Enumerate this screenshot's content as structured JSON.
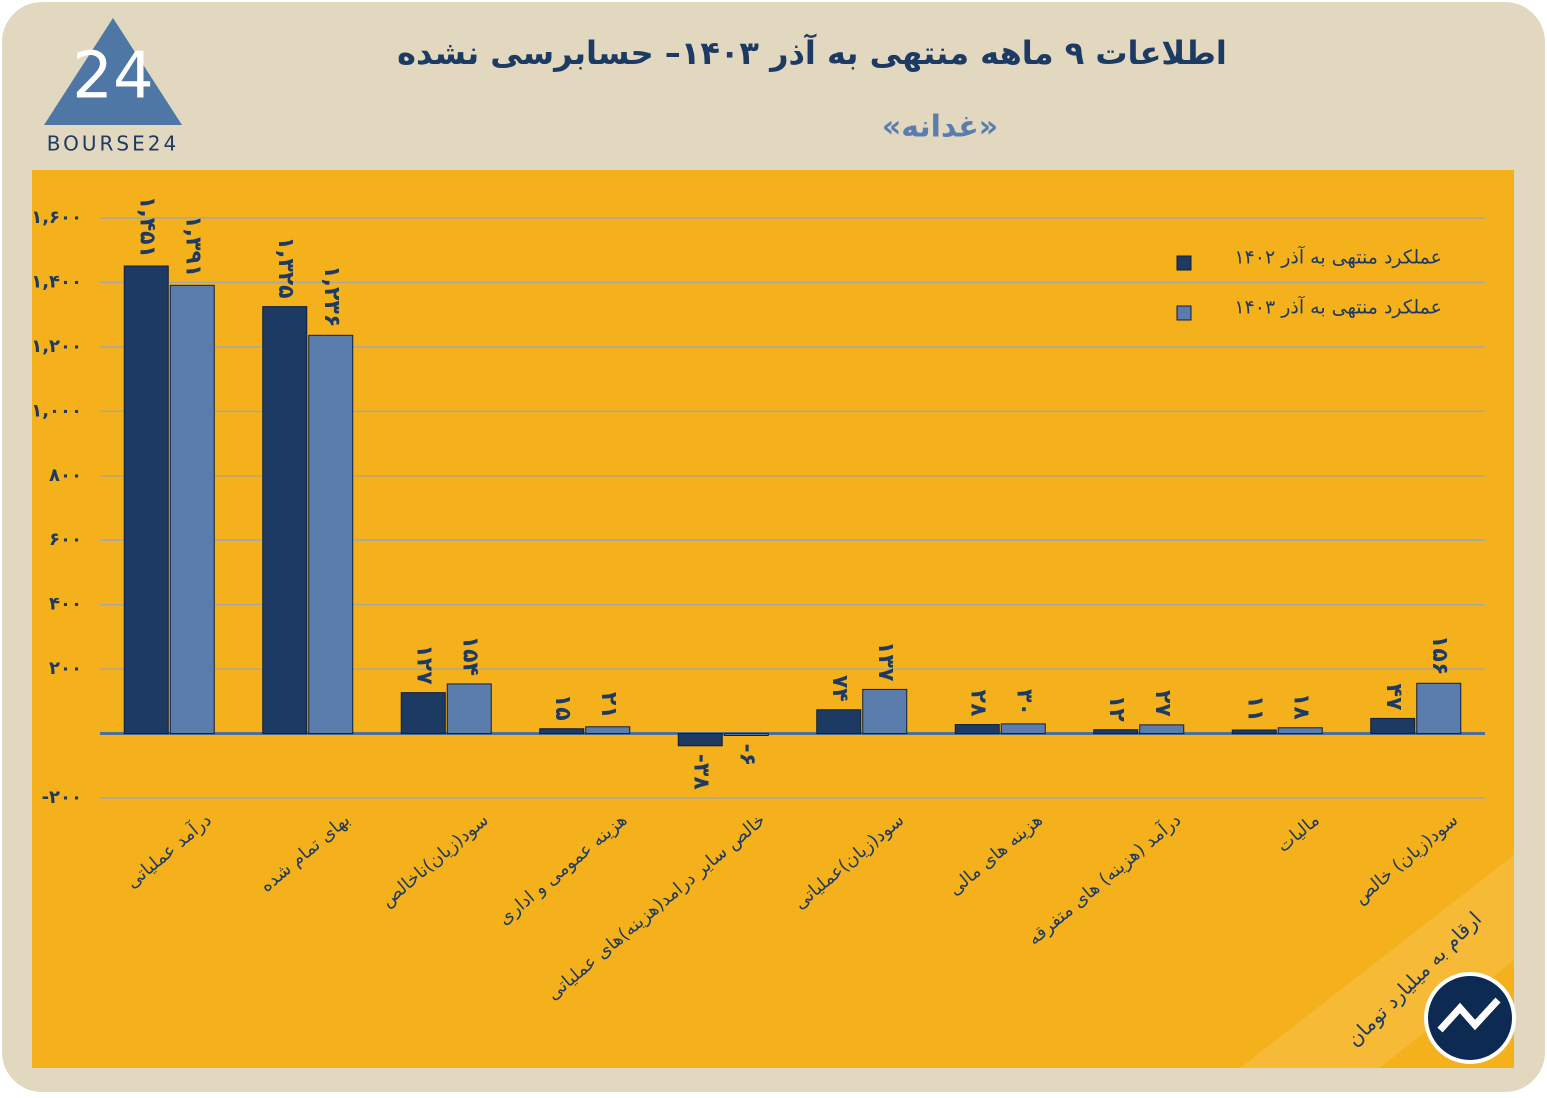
{
  "logo": {
    "mark": "24",
    "text": "BOURSE24"
  },
  "chart_data": {
    "type": "bar",
    "title": "اطلاعات ۹ ماهه منتهی به آذر ۱۴۰۳– حسابرسی نشده",
    "subtitle": "«غدانه»",
    "note": "ارقام به میلیارد تومان",
    "categories": [
      "درآمد عملیاتی",
      "بهای تمام شده",
      "سود(زیان)ناخالص",
      "هزینه عمومی و اداری",
      "خالص سایر درامد(هزینه)های عملیاتی",
      "سود(زیان)عملیاتی",
      "هزینه های مالی",
      "درآمد (هزینه) های متفرقه",
      "مالیات",
      "سود(زیان) خالص"
    ],
    "series": [
      {
        "name": "عملکرد منتهی به آذر ۱۴۰۲",
        "color": "#1d3a63",
        "values": [
          1451,
          1325,
          127,
          15,
          -38,
          74,
          28,
          12,
          11,
          47
        ],
        "value_labels": [
          "۱,۴۵۱",
          "۱,۳۲۵",
          "۱۲۷",
          "۱۵",
          "-۳۸",
          "۷۴",
          "۲۸",
          "۱۲",
          "۱۱",
          "۴۷"
        ]
      },
      {
        "name": "عملکرد منتهی به آذر ۱۴۰۳",
        "color": "#5b7dad",
        "values": [
          1391,
          1236,
          154,
          21,
          -6,
          137,
          30,
          27,
          18,
          156
        ],
        "value_labels": [
          "۱,۳۹۱",
          "۱,۲۳۶",
          "۱۵۴",
          "۲۱",
          "-۶",
          "۱۳۷",
          "۳۰",
          "۲۷",
          "۱۸",
          "۱۵۶"
        ]
      }
    ],
    "ylim": [
      -200,
      1600
    ],
    "yticks": [
      {
        "value": -200,
        "label": "-۲۰۰"
      },
      {
        "value": 200,
        "label": "۲۰۰"
      },
      {
        "value": 400,
        "label": "۴۰۰"
      },
      {
        "value": 600,
        "label": "۶۰۰"
      },
      {
        "value": 800,
        "label": "۸۰۰"
      },
      {
        "value": 1000,
        "label": "۱,۰۰۰"
      },
      {
        "value": 1200,
        "label": "۱,۲۰۰"
      },
      {
        "value": 1400,
        "label": "۱,۴۰۰"
      },
      {
        "value": 1600,
        "label": "۱,۶۰۰"
      }
    ],
    "grid": true,
    "legend": "top-right"
  }
}
